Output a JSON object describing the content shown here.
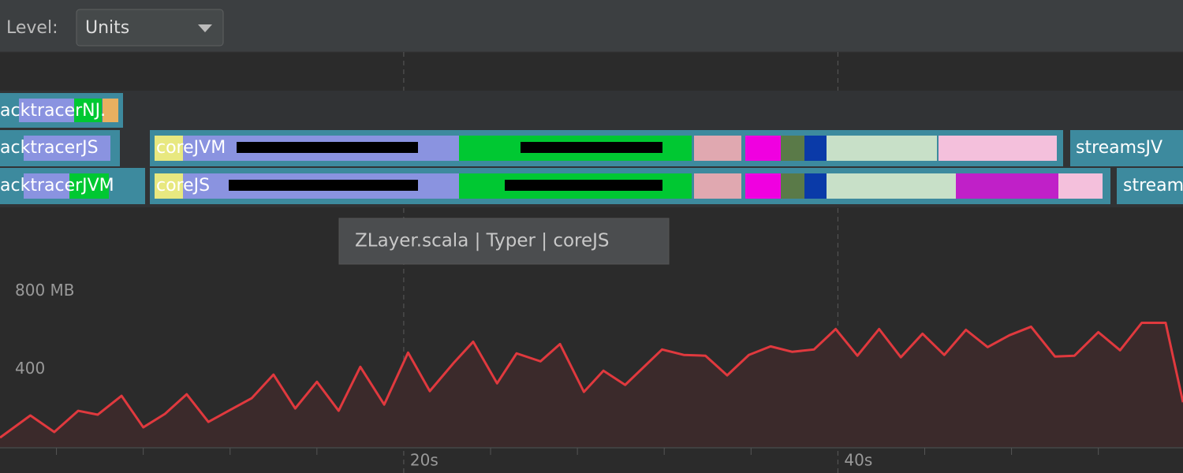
{
  "toolbar": {
    "level_label": "Level:",
    "level_value": "Units"
  },
  "tracks": [
    [
      "acktracerNJ."
    ],
    [
      "acktracerJS",
      "coreJVM",
      "streamsJV"
    ],
    [
      "acktracerJVM",
      "coreJS",
      "stream"
    ]
  ],
  "tooltip": "ZLayer.scala | Typer | coreJS",
  "chart_data": {
    "type": "area",
    "color": "#e0393e",
    "fill": "#3b2a2b",
    "x": [
      1.4,
      2.8,
      3.9,
      5.0,
      5.9,
      7.0,
      8.0,
      9.0,
      10.0,
      11.0,
      12.0,
      13.0,
      14.0,
      15.0,
      16.0,
      17.0,
      18.0,
      19.1,
      20.2,
      21.2,
      22.3,
      23.2,
      24.3,
      25.2,
      26.3,
      27.2,
      28.3,
      29.2,
      30.2,
      31.9,
      32.9,
      33.9,
      34.9,
      35.9,
      36.9,
      37.9,
      38.9,
      39.9,
      40.9,
      41.9,
      42.9,
      43.9,
      44.9,
      45.9,
      46.9,
      47.9,
      48.9,
      50.0,
      50.9,
      52.0,
      53.0,
      54.0,
      55.1,
      55.9
    ],
    "values": [
      48,
      162,
      77,
      186,
      166,
      263,
      101,
      170,
      271,
      129,
      190,
      251,
      372,
      198,
      335,
      186,
      412,
      218,
      485,
      287,
      432,
      541,
      327,
      481,
      440,
      529,
      283,
      392,
      319,
      501,
      473,
      469,
      368,
      473,
      517,
      489,
      501,
      606,
      469,
      606,
      461,
      582,
      473,
      602,
      513,
      574,
      618,
      465,
      469,
      590,
      497,
      638,
      638,
      230
    ],
    "xlim": [
      1.4,
      55.9
    ],
    "ylim": [
      0,
      960
    ],
    "xticks": [
      {
        "value": 20,
        "label": "20s"
      },
      {
        "value": 40,
        "label": "40s"
      }
    ],
    "minor_xticks": [
      4,
      8,
      12,
      16,
      24,
      28,
      32,
      36,
      44,
      48,
      52
    ],
    "yticks": [
      {
        "value": 800,
        "label": "800 MB"
      },
      400
    ]
  }
}
